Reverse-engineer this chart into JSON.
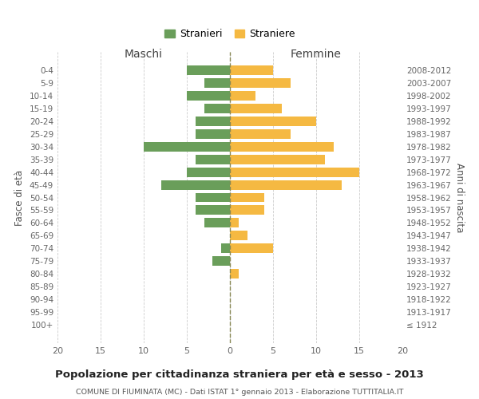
{
  "age_groups": [
    "0-4",
    "5-9",
    "10-14",
    "15-19",
    "20-24",
    "25-29",
    "30-34",
    "35-39",
    "40-44",
    "45-49",
    "50-54",
    "55-59",
    "60-64",
    "65-69",
    "70-74",
    "75-79",
    "80-84",
    "85-89",
    "90-94",
    "95-99",
    "100+"
  ],
  "birth_years": [
    "2008-2012",
    "2003-2007",
    "1998-2002",
    "1993-1997",
    "1988-1992",
    "1983-1987",
    "1978-1982",
    "1973-1977",
    "1968-1972",
    "1963-1967",
    "1958-1962",
    "1953-1957",
    "1948-1952",
    "1943-1947",
    "1938-1942",
    "1933-1937",
    "1928-1932",
    "1923-1927",
    "1918-1922",
    "1913-1917",
    "≤ 1912"
  ],
  "males": [
    5,
    3,
    5,
    3,
    4,
    4,
    10,
    4,
    5,
    8,
    4,
    4,
    3,
    0,
    1,
    2,
    0,
    0,
    0,
    0,
    0
  ],
  "females": [
    5,
    7,
    3,
    6,
    10,
    7,
    12,
    11,
    15,
    13,
    4,
    4,
    1,
    2,
    5,
    0,
    1,
    0,
    0,
    0,
    0
  ],
  "male_color": "#6a9e5a",
  "female_color": "#f5b942",
  "background_color": "#ffffff",
  "grid_color": "#cccccc",
  "title": "Popolazione per cittadinanza straniera per età e sesso - 2013",
  "subtitle": "COMUNE DI FIUMINATA (MC) - Dati ISTAT 1° gennaio 2013 - Elaborazione TUTTITALIA.IT",
  "ylabel_left": "Fasce di età",
  "ylabel_right": "Anni di nascita",
  "xlabel_left": "Maschi",
  "xlabel_right": "Femmine",
  "legend_male": "Stranieri",
  "legend_female": "Straniere",
  "xlim": 20,
  "bar_height": 0.75
}
